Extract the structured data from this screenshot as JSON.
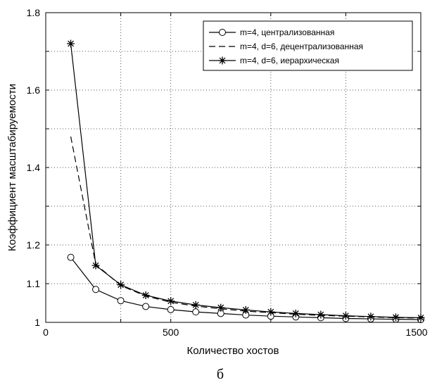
{
  "chart_data": {
    "type": "line",
    "xlabel": "Количество хостов",
    "ylabel": "Коэффициент масштабируемости",
    "caption": "б",
    "xlim": [
      0,
      1500
    ],
    "ylim": [
      1.0,
      1.8
    ],
    "x_ticks": [
      0,
      500,
      1500
    ],
    "x_tick_labels": [
      "0",
      "500",
      "1500"
    ],
    "x_grid": [
      0,
      300,
      500,
      900,
      1200,
      1500
    ],
    "y_ticks": [
      1.0,
      1.1,
      1.2,
      1.4,
      1.6,
      1.8
    ],
    "y_tick_labels": [
      "1",
      "1.1",
      "1.2",
      "1.4",
      "1.6",
      "1.8"
    ],
    "y_grid": [
      1.1,
      1.2,
      1.3,
      1.4,
      1.5,
      1.6,
      1.7,
      1.8
    ],
    "grid": true,
    "legend_position": "top-right",
    "x": [
      100,
      200,
      300,
      400,
      500,
      600,
      700,
      800,
      900,
      1000,
      1100,
      1200,
      1300,
      1400,
      1500
    ],
    "series": [
      {
        "name": "m=4, централизованная",
        "line_style": "solid",
        "marker": "circle",
        "color": "#000000",
        "values": [
          1.168,
          1.085,
          1.056,
          1.041,
          1.033,
          1.027,
          1.023,
          1.019,
          1.016,
          1.014,
          1.012,
          1.01,
          1.009,
          1.008,
          1.007
        ]
      },
      {
        "name": "m=4, d=6, децентрализованная",
        "line_style": "dashed",
        "marker": "none",
        "color": "#000000",
        "values": [
          1.48,
          1.15,
          1.095,
          1.068,
          1.052,
          1.042,
          1.035,
          1.029,
          1.025,
          1.021,
          1.018,
          1.016,
          1.014,
          1.012,
          1.011
        ]
      },
      {
        "name": "m=4, d=6, иерархическая",
        "line_style": "solid",
        "marker": "star",
        "color": "#000000",
        "values": [
          1.72,
          1.147,
          1.097,
          1.07,
          1.055,
          1.045,
          1.038,
          1.032,
          1.027,
          1.023,
          1.02,
          1.017,
          1.015,
          1.013,
          1.012
        ]
      }
    ]
  }
}
